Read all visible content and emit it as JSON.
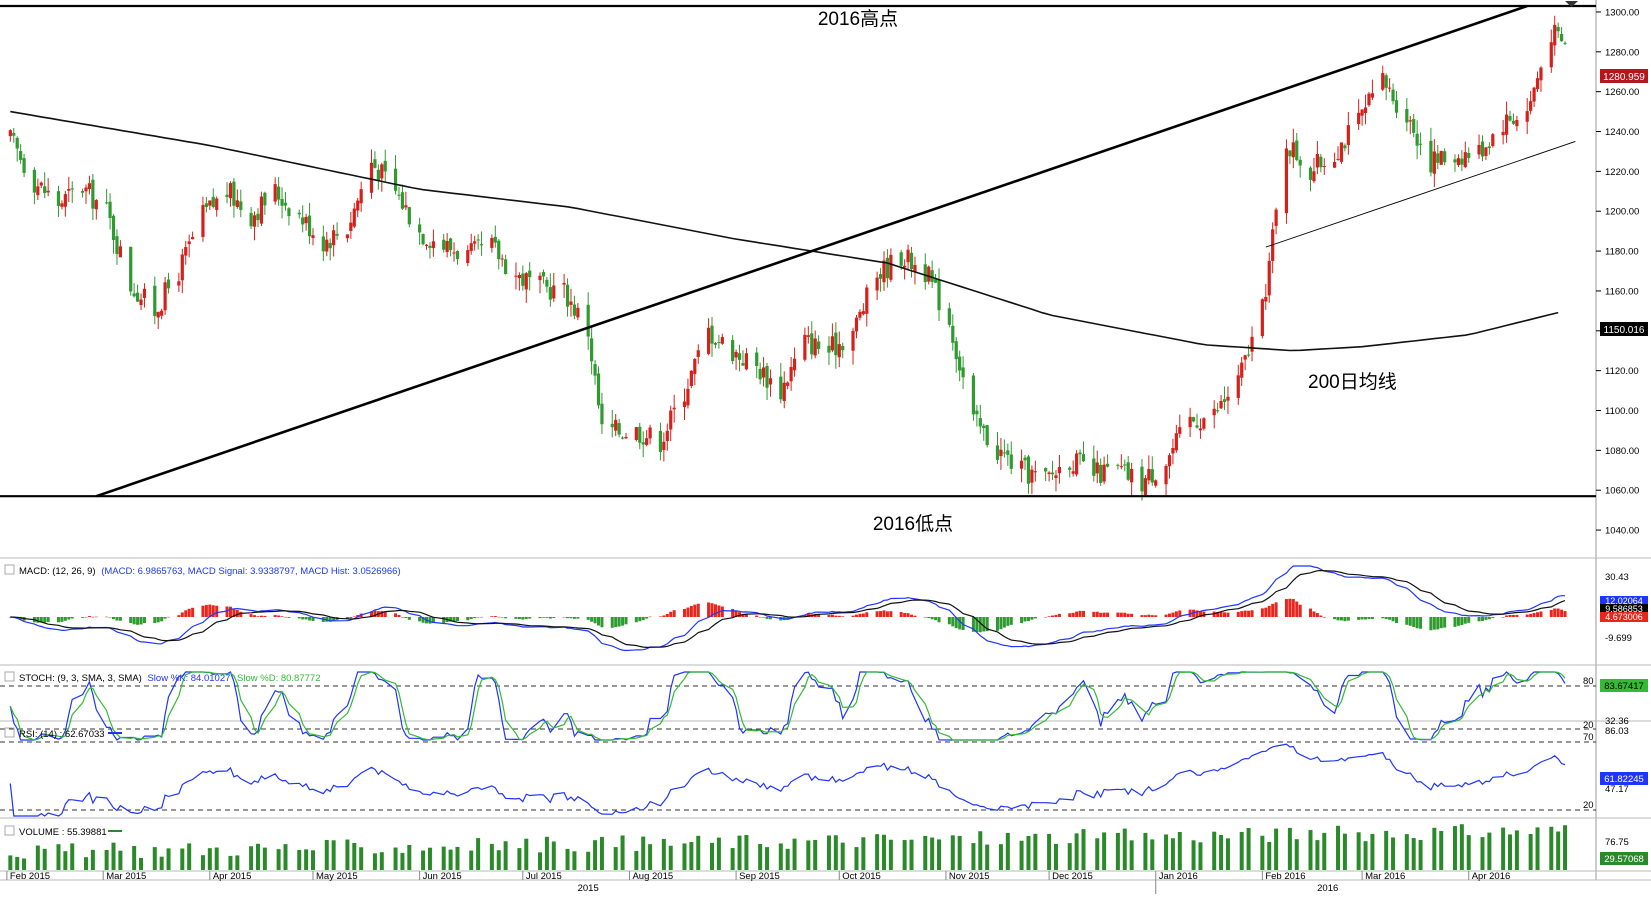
{
  "chart_data": {
    "type": "candlestick",
    "title": "",
    "annotations": {
      "high_label": "2016高点",
      "low_label": "2016低点",
      "ma_label": "200日均线"
    },
    "price_axis": {
      "ticks": [
        1300,
        1280,
        1260,
        1240,
        1220,
        1200,
        1180,
        1160,
        1140,
        1120,
        1100,
        1080,
        1060,
        1040
      ],
      "tick_labels": [
        "1300.00",
        "1280.00",
        "1260.00",
        "1240.00",
        "1220.00",
        "1200.00",
        "1180.00",
        "1160.00",
        "1140.00",
        "1120.00",
        "1100.00",
        "1080.00",
        "1060.00",
        "1040.00"
      ],
      "ylim": [
        1030,
        1306
      ],
      "last_price_label": "1280.959",
      "last_price": 1280.959,
      "ma_value_label": "1150.016",
      "ma_value": 1150.016
    },
    "levels": {
      "high_2016": 1303,
      "low_2016": 1057
    },
    "trendlines": [
      {
        "name": "rising-support-2015",
        "from": [
          "2015-02-27",
          1057
        ],
        "to": [
          "2016-04-18",
          1303
        ]
      },
      {
        "name": "rising-channel-2016",
        "from": [
          "2016-02-02",
          1182
        ],
        "to": [
          "2016-05-02",
          1235
        ]
      }
    ],
    "price_path": [
      [
        "2015-02-02",
        1236
      ],
      [
        "2015-02-09",
        1215
      ],
      [
        "2015-02-16",
        1204
      ],
      [
        "2015-02-23",
        1212
      ],
      [
        "2015-03-02",
        1200
      ],
      [
        "2015-03-09",
        1163
      ],
      [
        "2015-03-16",
        1150
      ],
      [
        "2015-03-23",
        1170
      ],
      [
        "2015-03-30",
        1198
      ],
      [
        "2015-04-06",
        1210
      ],
      [
        "2015-04-13",
        1198
      ],
      [
        "2015-04-20",
        1210
      ],
      [
        "2015-04-27",
        1198
      ],
      [
        "2015-05-04",
        1185
      ],
      [
        "2015-05-11",
        1192
      ],
      [
        "2015-05-18",
        1225
      ],
      [
        "2015-05-25",
        1210
      ],
      [
        "2015-06-01",
        1190
      ],
      [
        "2015-06-08",
        1183
      ],
      [
        "2015-06-15",
        1178
      ],
      [
        "2015-06-22",
        1182
      ],
      [
        "2015-06-29",
        1168
      ],
      [
        "2015-07-06",
        1162
      ],
      [
        "2015-07-13",
        1160
      ],
      [
        "2015-07-20",
        1140
      ],
      [
        "2015-07-24",
        1090
      ],
      [
        "2015-08-03",
        1090
      ],
      [
        "2015-08-10",
        1085
      ],
      [
        "2015-08-17",
        1110
      ],
      [
        "2015-08-24",
        1140
      ],
      [
        "2015-08-31",
        1130
      ],
      [
        "2015-09-07",
        1122
      ],
      [
        "2015-09-14",
        1110
      ],
      [
        "2015-09-21",
        1135
      ],
      [
        "2015-09-28",
        1130
      ],
      [
        "2015-10-05",
        1140
      ],
      [
        "2015-10-12",
        1168
      ],
      [
        "2015-10-19",
        1178
      ],
      [
        "2015-10-26",
        1170
      ],
      [
        "2015-11-02",
        1145
      ],
      [
        "2015-11-09",
        1095
      ],
      [
        "2015-11-16",
        1080
      ],
      [
        "2015-11-23",
        1070
      ],
      [
        "2015-11-30",
        1065
      ],
      [
        "2015-12-07",
        1076
      ],
      [
        "2015-12-14",
        1068
      ],
      [
        "2015-12-21",
        1070
      ],
      [
        "2015-12-28",
        1064
      ],
      [
        "2016-01-04",
        1075
      ],
      [
        "2016-01-11",
        1095
      ],
      [
        "2016-01-18",
        1098
      ],
      [
        "2016-01-25",
        1115
      ],
      [
        "2016-02-01",
        1150
      ],
      [
        "2016-02-08",
        1235
      ],
      [
        "2016-02-15",
        1220
      ],
      [
        "2016-02-22",
        1230
      ],
      [
        "2016-02-29",
        1245
      ],
      [
        "2016-03-07",
        1265
      ],
      [
        "2016-03-14",
        1248
      ],
      [
        "2016-03-21",
        1225
      ],
      [
        "2016-03-28",
        1228
      ],
      [
        "2016-04-04",
        1230
      ],
      [
        "2016-04-11",
        1245
      ],
      [
        "2016-04-18",
        1250
      ],
      [
        "2016-04-25",
        1290
      ],
      [
        "2016-04-29",
        1283
      ]
    ],
    "ma200_path": [
      [
        "2015-02-02",
        1250
      ],
      [
        "2015-04-01",
        1233
      ],
      [
        "2015-06-01",
        1211
      ],
      [
        "2015-07-15",
        1202
      ],
      [
        "2015-09-01",
        1186
      ],
      [
        "2015-10-15",
        1174
      ],
      [
        "2015-12-01",
        1148
      ],
      [
        "2016-01-15",
        1133
      ],
      [
        "2016-02-10",
        1130
      ],
      [
        "2016-03-01",
        1132
      ],
      [
        "2016-04-01",
        1138
      ],
      [
        "2016-04-29",
        1150
      ]
    ],
    "indicators": {
      "macd": {
        "label": "MACD: (12, 26, 9)",
        "values_text": "(MACD: 6.9865763, MACD Signal: 3.9338797, MACD Hist: 3.0526966)",
        "ticks": [
          "30.43",
          "-9.699"
        ],
        "last_values": [
          "12.02064",
          "9.586853",
          "4.673006"
        ],
        "colors": {
          "macd": "#1f35ff",
          "signal": "#000000",
          "hist_pos": "#e8261e",
          "hist_neg": "#2f9a2f"
        }
      },
      "stoch": {
        "label": "STOCH: (9, 3, SMA, 3, SMA)",
        "k_text": "Slow %K: 84.01027",
        "d_text": "Slow %D: 80.87772",
        "ticks": [
          "80",
          "32.36",
          "20"
        ],
        "last_value": "83.67417",
        "levels": [
          80,
          20
        ]
      },
      "rsi": {
        "label": "RSI: (14) : 62.67033",
        "ticks": [
          "86.03",
          "70",
          "47.17",
          "20"
        ],
        "last_value": "61.82245",
        "levels": [
          70,
          20
        ]
      },
      "volume": {
        "label": "VOLUME : 55.39881",
        "ticks": [
          "76.75"
        ],
        "last_value": "29.57068"
      }
    },
    "time_axis": {
      "months": [
        "Feb 2015",
        "Mar 2015",
        "Apr 2015",
        "May 2015",
        "Jun 2015",
        "Jul 2015",
        "Aug 2015",
        "Sep 2015",
        "Oct 2015",
        "Nov 2015",
        "Dec 2015",
        "Jan 2016",
        "Feb 2016",
        "Mar 2016",
        "Apr 2016"
      ],
      "month_dates": [
        "2015-02-01",
        "2015-03-01",
        "2015-04-01",
        "2015-05-01",
        "2015-06-01",
        "2015-07-01",
        "2015-08-01",
        "2015-09-01",
        "2015-10-01",
        "2015-11-01",
        "2015-12-01",
        "2016-01-01",
        "2016-02-01",
        "2016-03-01",
        "2016-04-01"
      ],
      "years": [
        "2015",
        "2016"
      ],
      "range": [
        "2015-01-30",
        "2016-05-08"
      ]
    },
    "colors": {
      "up": "#d6201b",
      "down": "#2f9a2f",
      "ma": "#000000",
      "price_tag": "#b4161b",
      "ma_tag": "#000000",
      "stoch_k": "#1f35ff",
      "stoch_d": "#33bb33",
      "rsi": "#1f35ff",
      "volume": "#2a8a2a"
    }
  }
}
